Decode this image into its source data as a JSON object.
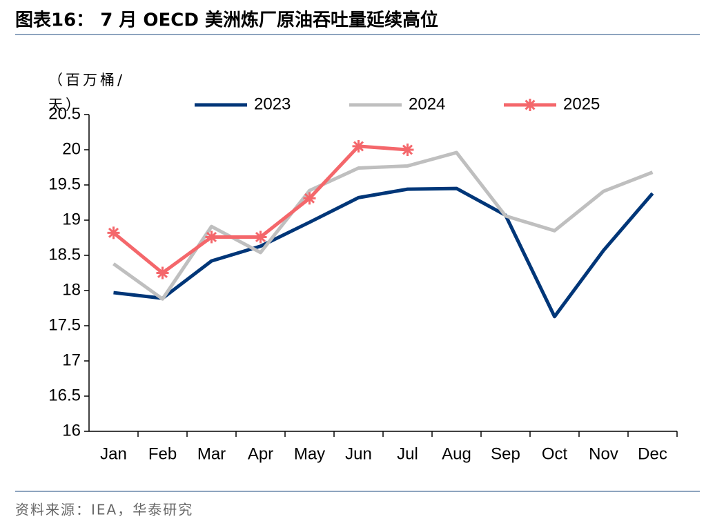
{
  "chart_data": {
    "type": "line",
    "title": "图表16： 7 月 OECD 美洲炼厂原油吞吐量延续高位",
    "y_label": "（百万桶/天）",
    "source": "资料来源：IEA，华泰研究",
    "categories": [
      "Jan",
      "Feb",
      "Mar",
      "Apr",
      "May",
      "Jun",
      "Jul",
      "Aug",
      "Sep",
      "Oct",
      "Nov",
      "Dec"
    ],
    "series": [
      {
        "name": "2023",
        "color": "#003678",
        "values": [
          17.97,
          17.89,
          18.42,
          18.63,
          18.97,
          19.32,
          19.44,
          19.45,
          19.07,
          17.63,
          18.57,
          19.38
        ]
      },
      {
        "name": "2024",
        "color": "#bfbfbf",
        "values": [
          18.38,
          17.88,
          18.91,
          18.54,
          19.42,
          19.74,
          19.77,
          19.96,
          19.06,
          18.85,
          19.41,
          19.68
        ]
      },
      {
        "name": "2025",
        "color": "#f4676b",
        "marker": "asterisk",
        "values": [
          18.82,
          18.25,
          18.76,
          18.76,
          19.31,
          20.05,
          20.0,
          null,
          null,
          null,
          null,
          null
        ]
      }
    ],
    "ylim": [
      16,
      20.5
    ],
    "yticks": [
      16,
      16.5,
      17,
      17.5,
      18,
      18.5,
      19,
      19.5,
      20,
      20.5
    ],
    "grid": false,
    "legend": "top"
  }
}
